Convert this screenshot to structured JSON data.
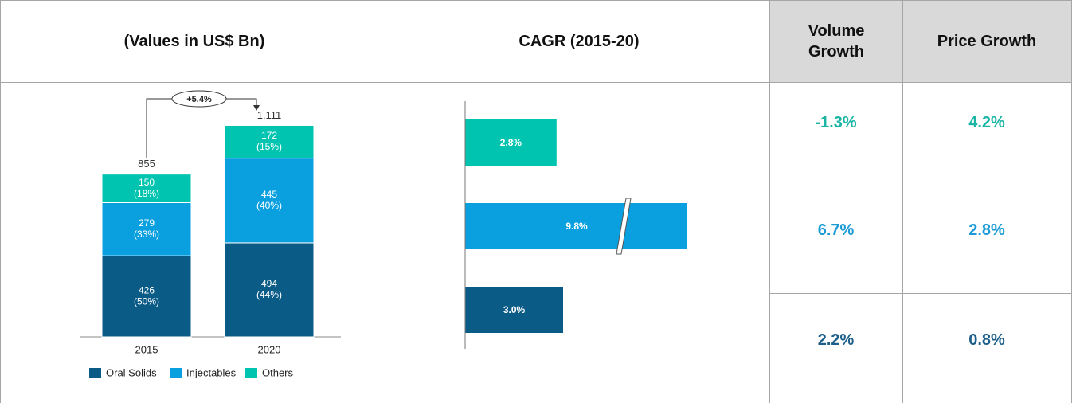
{
  "table": {
    "headers": [
      "(Values in US$ Bn)",
      "CAGR (2015-20)",
      "Volume Growth",
      "Price Growth"
    ],
    "rows": [
      [
        "-1.3%",
        "4.2%"
      ],
      [
        "6.7%",
        "2.8%"
      ],
      [
        "2.2%",
        "0.8%"
      ]
    ],
    "row_colors": [
      "#1bb5a6",
      "#1a9ad6",
      "#1d5f8a"
    ]
  },
  "chart_data": [
    {
      "type": "bar",
      "stacked": true,
      "categories": [
        "2015",
        "2020"
      ],
      "series": [
        {
          "name": "Oral Solids",
          "color": "#0b5b87",
          "values": [
            426,
            494
          ],
          "share_labels": [
            "(50%)",
            "(44%)"
          ]
        },
        {
          "name": "Injectables",
          "color": "#0aa0e0",
          "values": [
            279,
            445
          ],
          "share_labels": [
            "(33%)",
            "(40%)"
          ]
        },
        {
          "name": "Others",
          "color": "#00c4b0",
          "values": [
            150,
            172
          ],
          "share_labels": [
            "(18%)",
            "(15%)"
          ]
        }
      ],
      "totals": [
        855,
        1111
      ],
      "total_labels": [
        "855",
        "1,111"
      ],
      "annotation": "+5.4%",
      "legend": "bottom"
    },
    {
      "type": "hbar",
      "values": [
        2.8,
        9.8,
        3.0
      ],
      "value_labels": [
        "2.8%",
        "9.8%",
        "3.0%"
      ],
      "colors": [
        "#00c4b0",
        "#0aa0e0",
        "#0b5b87"
      ],
      "axis_break": true
    }
  ]
}
